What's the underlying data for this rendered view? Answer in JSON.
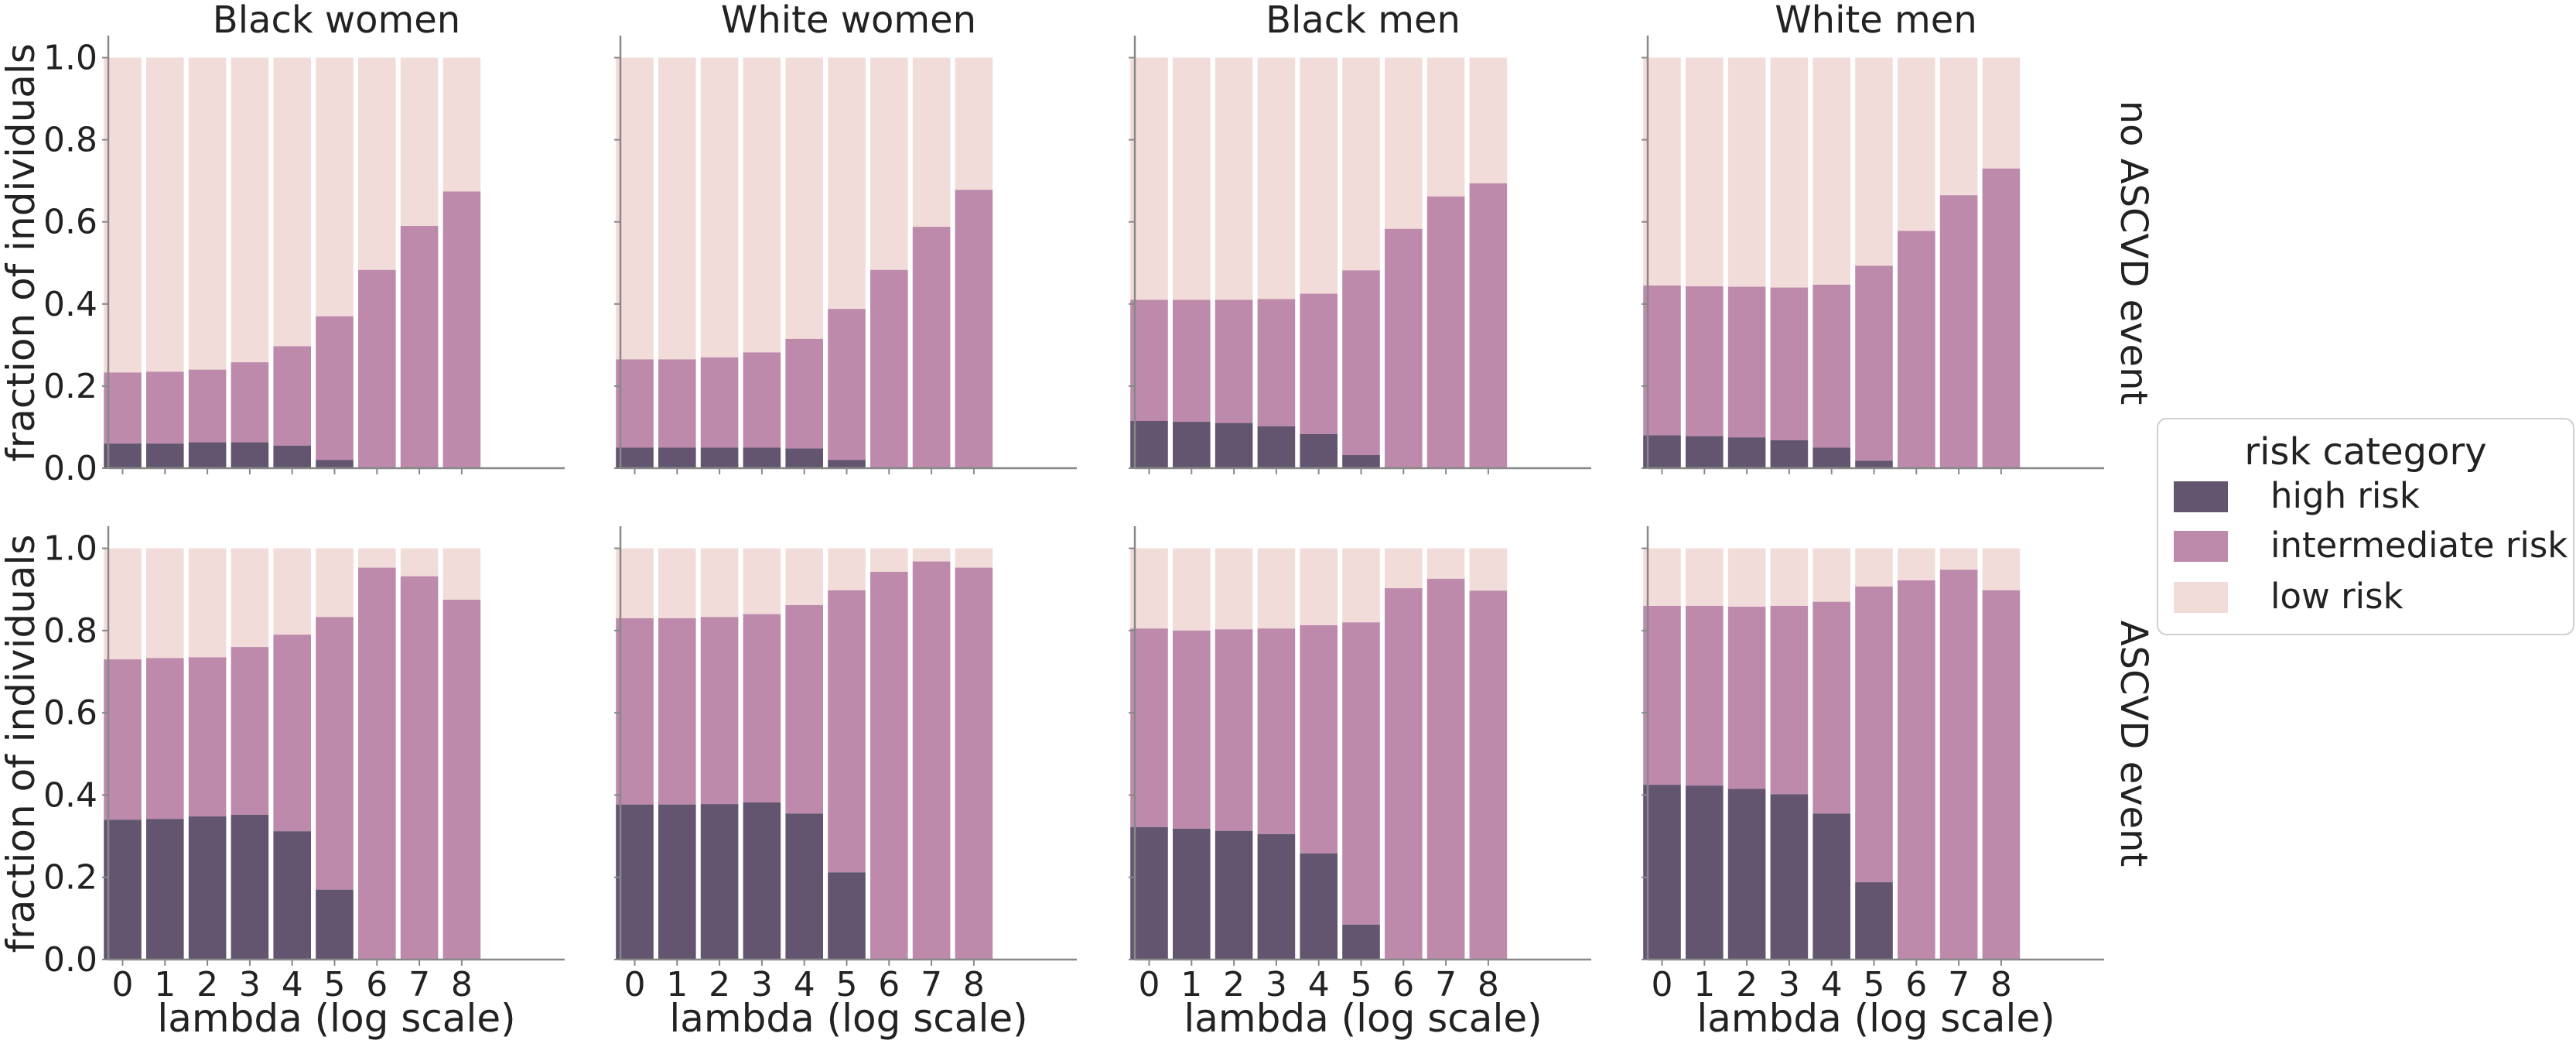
{
  "chart_data": {
    "type": "bar",
    "stacked": true,
    "facet_columns": [
      "Black women",
      "White women",
      "Black men",
      "White men"
    ],
    "facet_rows": [
      "no ASCVD event",
      "ASCVD event"
    ],
    "xlabel": "lambda (log scale)",
    "ylabel": "fraction of individuals",
    "categories": [
      "0",
      "1",
      "2",
      "3",
      "4",
      "5",
      "6",
      "7",
      "8"
    ],
    "ylim": [
      0,
      1.05
    ],
    "yticks": [
      "0.0",
      "0.2",
      "0.4",
      "0.6",
      "0.8",
      "1.0"
    ],
    "grid": false,
    "legend": {
      "title": "risk category",
      "placement": "right",
      "entries": [
        "high risk",
        "intermediate risk",
        "low risk"
      ]
    },
    "colors": {
      "high risk": "#635570",
      "intermediate risk": "#bd8aab",
      "low risk": "#f2dcd9"
    },
    "panels": [
      {
        "row": "no ASCVD event",
        "col": "Black women",
        "high": [
          0.06,
          0.06,
          0.063,
          0.063,
          0.055,
          0.02,
          0,
          0,
          0
        ],
        "high_plus_intermediate": [
          0.233,
          0.235,
          0.24,
          0.258,
          0.297,
          0.37,
          0.483,
          0.59,
          0.674
        ]
      },
      {
        "row": "no ASCVD event",
        "col": "White women",
        "high": [
          0.05,
          0.05,
          0.05,
          0.05,
          0.048,
          0.02,
          0,
          0,
          0
        ],
        "high_plus_intermediate": [
          0.265,
          0.265,
          0.27,
          0.282,
          0.315,
          0.388,
          0.483,
          0.588,
          0.678
        ]
      },
      {
        "row": "no ASCVD event",
        "col": "Black men",
        "high": [
          0.115,
          0.113,
          0.11,
          0.102,
          0.083,
          0.032,
          0,
          0,
          0
        ],
        "high_plus_intermediate": [
          0.41,
          0.41,
          0.41,
          0.412,
          0.425,
          0.482,
          0.583,
          0.662,
          0.694
        ]
      },
      {
        "row": "no ASCVD event",
        "col": "White men",
        "high": [
          0.08,
          0.078,
          0.075,
          0.068,
          0.05,
          0.018,
          0,
          0,
          0
        ],
        "high_plus_intermediate": [
          0.445,
          0.443,
          0.442,
          0.44,
          0.447,
          0.493,
          0.578,
          0.665,
          0.73
        ]
      },
      {
        "row": "ASCVD event",
        "col": "Black women",
        "high": [
          0.34,
          0.342,
          0.348,
          0.352,
          0.312,
          0.17,
          0,
          0,
          0
        ],
        "high_plus_intermediate": [
          0.73,
          0.733,
          0.735,
          0.76,
          0.79,
          0.833,
          0.953,
          0.932,
          0.875
        ]
      },
      {
        "row": "ASCVD event",
        "col": "White women",
        "high": [
          0.377,
          0.377,
          0.378,
          0.382,
          0.355,
          0.212,
          0,
          0,
          0
        ],
        "high_plus_intermediate": [
          0.83,
          0.83,
          0.833,
          0.84,
          0.862,
          0.898,
          0.943,
          0.968,
          0.953
        ]
      },
      {
        "row": "ASCVD event",
        "col": "Black men",
        "high": [
          0.322,
          0.318,
          0.313,
          0.305,
          0.258,
          0.085,
          0,
          0,
          0
        ],
        "high_plus_intermediate": [
          0.805,
          0.8,
          0.803,
          0.805,
          0.813,
          0.82,
          0.903,
          0.926,
          0.897
        ]
      },
      {
        "row": "ASCVD event",
        "col": "White men",
        "high": [
          0.425,
          0.423,
          0.415,
          0.402,
          0.355,
          0.188,
          0,
          0,
          0
        ],
        "high_plus_intermediate": [
          0.86,
          0.86,
          0.858,
          0.86,
          0.87,
          0.907,
          0.922,
          0.948,
          0.898
        ]
      }
    ]
  }
}
